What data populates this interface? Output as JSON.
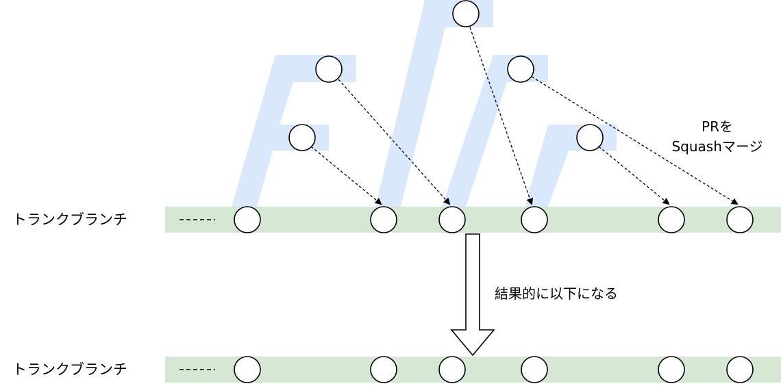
{
  "top_trunk": {
    "label": "トランクブランチ"
  },
  "bottom_trunk": {
    "label": "トランクブランチ"
  },
  "annotations": {
    "merge_line1": "PRを",
    "merge_line2": "Squashマージ",
    "result_text": "結果的に以下になる"
  },
  "colors": {
    "trunk_band": "#d5e8d4",
    "branch": "#dae8fc",
    "stroke": "#000000"
  }
}
